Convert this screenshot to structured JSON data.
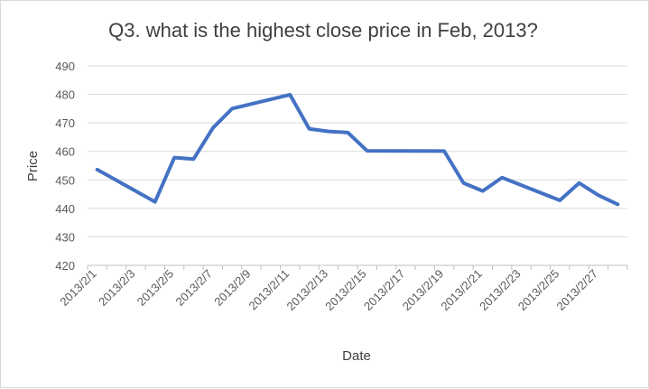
{
  "chart_data": {
    "type": "line",
    "title": "Q3. what is the highest close price in Feb, 2013?",
    "xlabel": "Date",
    "ylabel": "Price",
    "ylim": [
      420,
      490
    ],
    "yticks": [
      420,
      430,
      440,
      450,
      460,
      470,
      480,
      490
    ],
    "xtick_labels": [
      "2013/2/1",
      "2013/2/3",
      "2013/2/5",
      "2013/2/7",
      "2013/2/9",
      "2013/2/11",
      "2013/2/13",
      "2013/2/15",
      "2013/2/17",
      "2013/2/19",
      "2013/2/21",
      "2013/2/23",
      "2013/2/25",
      "2013/2/27"
    ],
    "x": [
      "2013/2/1",
      "2013/2/4",
      "2013/2/5",
      "2013/2/6",
      "2013/2/7",
      "2013/2/8",
      "2013/2/11",
      "2013/2/12",
      "2013/2/13",
      "2013/2/14",
      "2013/2/15",
      "2013/2/19",
      "2013/2/20",
      "2013/2/21",
      "2013/2/22",
      "2013/2/25",
      "2013/2/26",
      "2013/2/27",
      "2013/2/28"
    ],
    "series": [
      {
        "name": "",
        "color": "#4472c4",
        "values": [
          453.6,
          442.3,
          457.8,
          457.3,
          468.2,
          475.0,
          479.9,
          467.9,
          467.0,
          466.6,
          460.2,
          460.1,
          448.9,
          446.1,
          450.8,
          442.8,
          448.9,
          444.6,
          441.4
        ]
      }
    ],
    "grid": true,
    "legend": "none"
  }
}
